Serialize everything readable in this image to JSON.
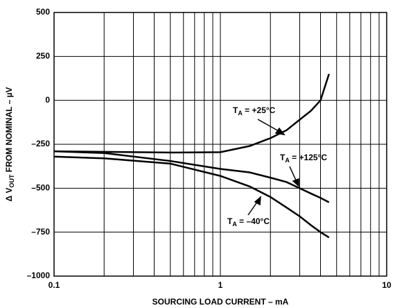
{
  "chart_data": {
    "type": "line",
    "xlabel": "SOURCING LOAD CURRENT – mA",
    "ylabel": {
      "main": "Δ V",
      "sub": "OUT",
      "rest": " FROM NOMINAL – µV"
    },
    "xscale": "log",
    "xlim": [
      0.1,
      10
    ],
    "xticks": [
      0.1,
      1,
      10
    ],
    "ylim": [
      -1000,
      500
    ],
    "yticks": [
      {
        "value": 500,
        "label": "500"
      },
      {
        "value": 250,
        "label": "250"
      },
      {
        "value": 0,
        "label": "0"
      },
      {
        "value": -250,
        "label": "–250"
      },
      {
        "value": -500,
        "label": "–500"
      },
      {
        "value": -750,
        "label": "–750"
      },
      {
        "value": -1000,
        "label": "–1000"
      }
    ],
    "grid": true,
    "x": [
      0.1,
      0.2,
      0.5,
      1,
      1.5,
      2,
      2.5,
      3,
      3.5,
      4,
      4.5
    ],
    "series": [
      {
        "color": "#000000",
        "values": [
          -290,
          -293,
          -297,
          -295,
          -260,
          -215,
          -170,
          -110,
          -60,
          0,
          150
        ]
      },
      {
        "color": "#000000",
        "values": [
          -290,
          -300,
          -345,
          -390,
          -410,
          -440,
          -465,
          -500,
          -530,
          -555,
          -580
        ]
      },
      {
        "color": "#000000",
        "values": [
          -320,
          -330,
          -360,
          -430,
          -490,
          -550,
          -610,
          -660,
          -710,
          -750,
          -780
        ]
      }
    ],
    "annotations": [
      {
        "main": "T",
        "sub": "A",
        "rest": " = +25°C"
      },
      {
        "main": "T",
        "sub": "A",
        "rest": " = +125°C"
      },
      {
        "main": "T",
        "sub": "A",
        "rest": " = –40°C"
      }
    ]
  }
}
